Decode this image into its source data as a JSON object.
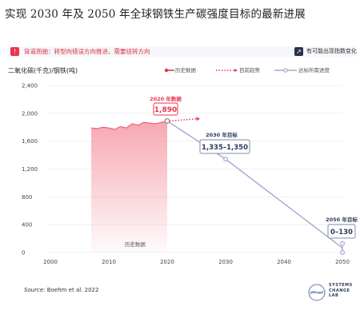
{
  "title": "实现 2030 年及 2050 年全球钢铁生产碳强度目标的最新进展",
  "banner": {
    "warning": "背道而驰：转型向错误方向推进，需要扭转方向",
    "warning_icon": "alert-icon",
    "trend_note": "有可能出现指数变化",
    "trend_icon": "trend-icon"
  },
  "legend": {
    "history": "历史数据",
    "current_trend": "目前趋势",
    "required_path": "达标所需进度"
  },
  "source": {
    "label": "Source:",
    "text": "Boehm et al. 2022"
  },
  "logo": {
    "line1": "SYSTEMS",
    "line2": "CHANGE",
    "line3": "LAB"
  },
  "colors": {
    "history": "#e8364e",
    "history_fill": "#f6a3ad",
    "required": "#a9a6d1",
    "callout_border": "#7e8bb0",
    "callout_text": "#2d3a5a",
    "current_trend": "#e8364e"
  },
  "chart_data": {
    "type": "area",
    "ylabel": "二氧化碳(千克)/钢铁(吨)",
    "xlim": [
      2000,
      2050
    ],
    "ylim": [
      0,
      2400
    ],
    "x_ticks": [
      2000,
      2010,
      2020,
      2030,
      2040,
      2050
    ],
    "y_ticks": [
      0,
      400,
      800,
      1200,
      1600,
      2000,
      2400
    ],
    "y_tick_labels": [
      "0",
      "400",
      "800",
      "1,200",
      "1,600",
      "2,000",
      "2,400"
    ],
    "series": [
      {
        "name": "历史数据",
        "style": "area",
        "x": [
          2007,
          2008,
          2009,
          2010,
          2011,
          2012,
          2013,
          2014,
          2015,
          2016,
          2017,
          2018,
          2019,
          2020
        ],
        "y": [
          1790,
          1780,
          1800,
          1790,
          1770,
          1810,
          1790,
          1850,
          1830,
          1870,
          1860,
          1850,
          1870,
          1890
        ]
      },
      {
        "name": "目前趋势",
        "style": "dotted-arrow",
        "x": [
          2020,
          2025
        ],
        "y": [
          1890,
          1920
        ]
      },
      {
        "name": "达标所需进度",
        "style": "line",
        "x": [
          2020,
          2030,
          2050
        ],
        "y": [
          1890,
          1342,
          65
        ]
      }
    ],
    "annotations": [
      {
        "header": "2020 年数据",
        "value": "1,890",
        "x": 2020,
        "y": 1890
      },
      {
        "header": "2030 年目标",
        "value": "1,335–1,350",
        "x": 2030,
        "y": 1342
      },
      {
        "header": "2050 年目标",
        "value": "0–130",
        "x": 2050,
        "y": 65
      }
    ],
    "area_label": "历史数据",
    "grid": true
  }
}
